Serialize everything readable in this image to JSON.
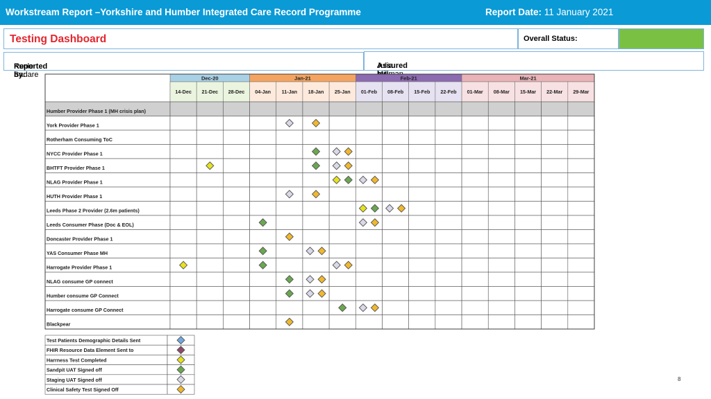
{
  "header": {
    "title": "Workstream Report –Yorkshire and Humber Integrated Care Record Programme",
    "report_date_label": "Report Date:",
    "report_date": "11 January 2021"
  },
  "dashboard": {
    "title": "Testing Dashboard",
    "overall_status_label": "Overall Status:",
    "status_color": "#7ac143",
    "reported_by_label": "Reported by:",
    "reported_by": "Kunle Sadare",
    "assured_by_label": "Assured by:",
    "assured_by": "Julia Millman"
  },
  "timeline": {
    "months": [
      {
        "label": "Dec-20",
        "span": 3,
        "header_color": "#a9d1e6",
        "cell_color": "#eaf4df"
      },
      {
        "label": "Jan-21",
        "span": 4,
        "header_color": "#f4a460",
        "cell_color": "#fdeadd"
      },
      {
        "label": "Feb-21",
        "span": 4,
        "header_color": "#8c6bb1",
        "cell_color": "#e6e2f1"
      },
      {
        "label": "Mar-21",
        "span": 5,
        "header_color": "#e9b3b8",
        "cell_color": "#f8e1e3"
      }
    ],
    "weeks": [
      "14-Dec",
      "21-Dec",
      "28-Dec",
      "04-Jan",
      "11-Jan",
      "18-Jan",
      "25-Jan",
      "01-Feb",
      "08-Feb",
      "15-Feb",
      "22-Feb",
      "01-Mar",
      "08-Mar",
      "15-Mar",
      "22-Mar",
      "29-Mar"
    ],
    "rows": [
      {
        "label": "Humber Provider Phase 1 (MH crisis plan)",
        "shaded": true,
        "milestones": []
      },
      {
        "label": "York Provider Phase 1",
        "milestones": [
          {
            "week": 4,
            "types": [
              "staging"
            ]
          },
          {
            "week": 5,
            "types": [
              "clinical"
            ]
          }
        ]
      },
      {
        "label": "Rotherham Consuming ToC",
        "milestones": []
      },
      {
        "label": "NYCC Provider Phase 1",
        "milestones": [
          {
            "week": 5,
            "types": [
              "sandpit"
            ]
          },
          {
            "week": 6,
            "types": [
              "staging",
              "clinical"
            ]
          }
        ]
      },
      {
        "label": "BHTFT Provider Phase 1",
        "milestones": [
          {
            "week": 1,
            "types": [
              "harness"
            ]
          },
          {
            "week": 5,
            "types": [
              "sandpit"
            ]
          },
          {
            "week": 6,
            "types": [
              "staging",
              "clinical"
            ]
          }
        ]
      },
      {
        "label": "NLAG Provider Phase 1",
        "milestones": [
          {
            "week": 6,
            "types": [
              "harness",
              "sandpit"
            ]
          },
          {
            "week": 7,
            "types": [
              "staging",
              "clinical"
            ]
          }
        ]
      },
      {
        "label": "HUTH Provider Phase 1",
        "milestones": [
          {
            "week": 4,
            "types": [
              "staging"
            ]
          },
          {
            "week": 5,
            "types": [
              "clinical"
            ]
          }
        ]
      },
      {
        "label": "Leeds Phase 2 Provider (2.6m patients)",
        "milestones": [
          {
            "week": 7,
            "types": [
              "harness",
              "sandpit"
            ]
          },
          {
            "week": 8,
            "types": [
              "staging",
              "clinical"
            ]
          }
        ]
      },
      {
        "label": "Leeds Consumer Phase (Doc & EOL)",
        "milestones": [
          {
            "week": 3,
            "types": [
              "sandpit"
            ]
          },
          {
            "week": 7,
            "types": [
              "staging",
              "clinical"
            ]
          }
        ]
      },
      {
        "label": "Doncaster Provider Phase 1",
        "milestones": [
          {
            "week": 4,
            "types": [
              "clinical"
            ]
          }
        ]
      },
      {
        "label": "YAS Consumer Phase MH",
        "milestones": [
          {
            "week": 3,
            "types": [
              "sandpit"
            ]
          },
          {
            "week": 5,
            "types": [
              "staging",
              "clinical"
            ]
          }
        ]
      },
      {
        "label": "Harrogate Provider Phase 1",
        "milestones": [
          {
            "week": 0,
            "types": [
              "harness"
            ]
          },
          {
            "week": 3,
            "types": [
              "sandpit"
            ]
          },
          {
            "week": 6,
            "types": [
              "staging",
              "clinical"
            ]
          }
        ]
      },
      {
        "label": "NLAG consume GP connect",
        "milestones": [
          {
            "week": 4,
            "types": [
              "sandpit"
            ]
          },
          {
            "week": 5,
            "types": [
              "staging",
              "clinical"
            ]
          }
        ]
      },
      {
        "label": "Humber consume GP Connect",
        "milestones": [
          {
            "week": 4,
            "types": [
              "sandpit"
            ]
          },
          {
            "week": 5,
            "types": [
              "staging",
              "clinical"
            ]
          }
        ]
      },
      {
        "label": "Harrogate consume GP Connect",
        "milestones": [
          {
            "week": 6,
            "types": [
              "sandpit"
            ]
          },
          {
            "week": 7,
            "types": [
              "staging",
              "clinical"
            ]
          }
        ]
      },
      {
        "label": "Blackpear",
        "milestones": [
          {
            "week": 4,
            "types": [
              "clinical"
            ]
          }
        ]
      }
    ]
  },
  "legend": [
    {
      "key": "demographic",
      "label": "Test Patients Demographic Details Sent",
      "color": "#6fa8dc"
    },
    {
      "key": "fhir",
      "label": "FHIR Resource Data Element Sent to",
      "color": "#8e4a6b"
    },
    {
      "key": "harness",
      "label": "Harrness Test Completed",
      "color": "#e6e21e"
    },
    {
      "key": "sandpit",
      "label": "Sandpit UAT Signed off",
      "color": "#6aa84f"
    },
    {
      "key": "staging",
      "label": "Staging UAT Signed off",
      "color": "#d9d9e8"
    },
    {
      "key": "clinical",
      "label": "Clinical Safety Test Signed Off",
      "color": "#f1b82d"
    }
  ],
  "page_number": "8"
}
